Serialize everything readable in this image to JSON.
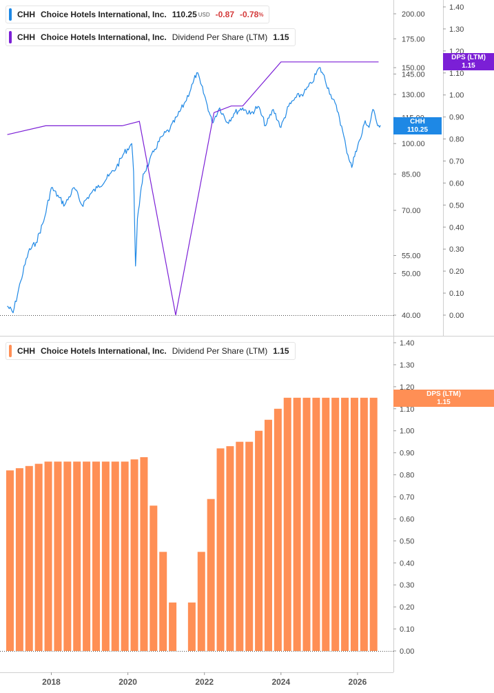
{
  "legend_price": {
    "ticker": "CHH",
    "company": "Choice Hotels International, Inc.",
    "price": "110.25",
    "currency": "USD",
    "change": "-0.87",
    "change_pct": "-0.78",
    "pct_sign": "%"
  },
  "legend_dps_top": {
    "ticker": "CHH",
    "company": "Choice Hotels International, Inc.",
    "metric": "Dividend Per Share (LTM)",
    "value": "1.15"
  },
  "legend_dps_bottom": {
    "ticker": "CHH",
    "company": "Choice Hotels International, Inc.",
    "metric": "Dividend Per Share (LTM)",
    "value": "1.15"
  },
  "badges": {
    "price": {
      "line1": "CHH",
      "line2": "110.25"
    },
    "dps_top": {
      "line1": "DPS (LTM)",
      "line2": "1.15"
    },
    "dps_bottom": {
      "line1": "DPS (LTM)",
      "line2": "1.15"
    }
  },
  "colors": {
    "price_line": "#1e88e5",
    "dps_line": "#7b1fd6",
    "bars": "#ff8f55",
    "negative": "#d43a3a"
  },
  "chart_data": [
    {
      "type": "line",
      "panel": "top",
      "series": [
        {
          "name": "CHH",
          "scale": "log",
          "ylim": [
            40,
            210
          ],
          "ticks": [
            40,
            50,
            55,
            70,
            85,
            100,
            115,
            130,
            145,
            150,
            175,
            200
          ],
          "tick_labels": [
            "40.00",
            "50.00",
            "55.00",
            "70.00",
            "85.00",
            "100.00",
            "115.00",
            "130.00",
            "145.00",
            "150.00",
            "175.00",
            "200.00"
          ],
          "x": [
            2016.85,
            2017.0,
            2017.2,
            2017.4,
            2017.6,
            2017.8,
            2018.0,
            2018.2,
            2018.35,
            2018.6,
            2018.8,
            2019.0,
            2019.2,
            2019.5,
            2019.7,
            2019.9,
            2020.1,
            2020.15,
            2020.2,
            2020.25,
            2020.3,
            2020.4,
            2020.55,
            2020.7,
            2020.9,
            2021.1,
            2021.3,
            2021.5,
            2021.7,
            2021.8,
            2021.9,
            2022.05,
            2022.2,
            2022.4,
            2022.6,
            2022.8,
            2023.0,
            2023.2,
            2023.4,
            2023.6,
            2023.8,
            2024.0,
            2024.2,
            2024.4,
            2024.6,
            2024.8,
            2025.0,
            2025.1,
            2025.3,
            2025.5,
            2025.7,
            2025.85,
            2025.95,
            2026.1,
            2026.2,
            2026.3,
            2026.4,
            2026.5,
            2026.6
          ],
          "y": [
            42,
            40.5,
            48,
            56,
            59,
            66,
            79,
            75,
            72,
            79,
            72,
            76,
            79,
            84,
            88,
            95,
            100,
            86,
            52,
            67,
            72,
            85,
            90,
            97,
            104,
            108,
            116,
            125,
            138,
            146,
            138,
            125,
            112,
            121,
            112,
            118,
            121,
            117,
            122,
            110,
            120,
            109,
            122,
            128,
            131,
            138,
            150,
            145,
            130,
            118,
            98,
            88,
            96,
            104,
            113,
            109,
            120,
            112,
            110.25
          ]
        },
        {
          "name": "DPS (LTM)",
          "scale": "linear",
          "ylim": [
            0,
            1.4
          ],
          "ticks": [
            0,
            0.1,
            0.2,
            0.3,
            0.4,
            0.5,
            0.6,
            0.7,
            0.8,
            0.9,
            1.0,
            1.1,
            1.2,
            1.3,
            1.4
          ],
          "tick_labels": [
            "0.00",
            "0.10",
            "0.20",
            "0.30",
            "0.40",
            "0.50",
            "0.60",
            "0.70",
            "0.80",
            "0.90",
            "1.00",
            "1.10",
            "1.20",
            "1.30",
            "1.40"
          ],
          "x": [
            2016.85,
            2017.85,
            2019.85,
            2020.3,
            2021.25,
            2022.25,
            2022.7,
            2023.0,
            2024.0,
            2026.55
          ],
          "y": [
            0.82,
            0.86,
            0.86,
            0.88,
            0.0,
            0.92,
            0.95,
            0.95,
            1.15,
            1.15
          ]
        }
      ]
    },
    {
      "type": "bar",
      "panel": "bottom",
      "ylim": [
        0,
        1.4
      ],
      "ticks": [
        0,
        0.1,
        0.2,
        0.3,
        0.4,
        0.5,
        0.6,
        0.7,
        0.8,
        0.9,
        1.0,
        1.1,
        1.2,
        1.3,
        1.4
      ],
      "tick_labels": [
        "0.00",
        "0.10",
        "0.20",
        "0.30",
        "0.40",
        "0.50",
        "0.60",
        "0.70",
        "0.80",
        "0.90",
        "1.00",
        "1.10",
        "1.20",
        "1.30",
        "1.40"
      ],
      "x_labels": [
        "2018",
        "2020",
        "2022",
        "2024",
        "2026"
      ],
      "series": [
        {
          "name": "DPS (LTM)",
          "x": [
            2016.92,
            2017.17,
            2017.42,
            2017.67,
            2017.92,
            2018.17,
            2018.42,
            2018.67,
            2018.92,
            2019.17,
            2019.42,
            2019.67,
            2019.92,
            2020.17,
            2020.42,
            2020.67,
            2020.92,
            2021.17,
            2021.42,
            2021.67,
            2021.92,
            2022.17,
            2022.42,
            2022.67,
            2022.92,
            2023.17,
            2023.42,
            2023.67,
            2023.92,
            2024.17,
            2024.42,
            2024.67,
            2024.92,
            2025.17,
            2025.42,
            2025.67,
            2025.92,
            2026.17,
            2026.42
          ],
          "values": [
            0.82,
            0.83,
            0.84,
            0.85,
            0.86,
            0.86,
            0.86,
            0.86,
            0.86,
            0.86,
            0.86,
            0.86,
            0.86,
            0.87,
            0.88,
            0.66,
            0.45,
            0.22,
            0.0,
            0.22,
            0.45,
            0.69,
            0.92,
            0.93,
            0.95,
            0.95,
            1.0,
            1.05,
            1.1,
            1.15,
            1.15,
            1.15,
            1.15,
            1.15,
            1.15,
            1.15,
            1.15,
            1.15,
            1.15
          ]
        }
      ]
    }
  ]
}
